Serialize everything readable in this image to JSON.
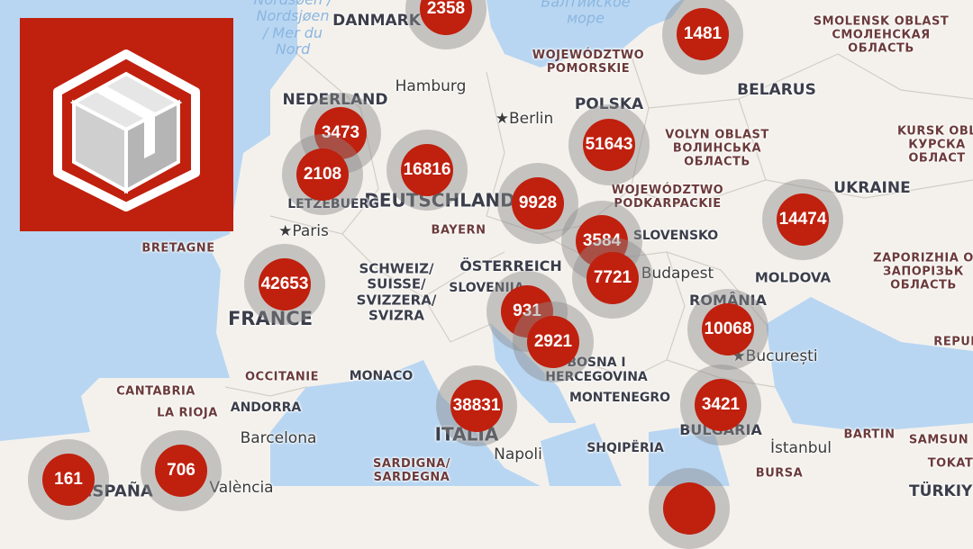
{
  "colors": {
    "land": "#f4f1ec",
    "sea": "#b8d6f2",
    "cluster": "#c0200e",
    "halo": "#8c8c8c",
    "logo_bg": "#c0200e"
  },
  "logo": {
    "icon": "package-box-icon"
  },
  "labels": {
    "north_sea": "Nordsøen /\nNordsjøen\n/ Mer du\nNord",
    "baltic": "Балтийское\nморе",
    "denmark": "DANMARK",
    "smolensk": "SMOLENSK OBLAST\nСМОЛЕНСКАЯ\nОБЛАСТЬ",
    "pomorskie": "WOJEWÓDZTWO\nPOMORSKIE",
    "hamburg": "Hamburg",
    "belarus": "BELARUS",
    "berlin": "Berlin",
    "nederland": "NEDERLAND",
    "polska": "POLSKA",
    "volyn": "VOLYN OBLAST\nВОЛИНСЬКА\nОБЛАСТЬ",
    "kursk": "KURSK OBL\nКУРСКА\nОБЛАСТ",
    "deutschland": "DEUTSCHLAND",
    "letzebuerg": "LETZEBUERG",
    "podkarpackie": "WOJEWÓDZTWO\nPODKARPACKIE",
    "ukraine": "UKRAINE",
    "bretagne": "BRETAGNE",
    "paris": "Paris",
    "bayern": "BAYERN",
    "slovensko": "SLOVENSKO",
    "zaporizhia": "ZAPORIZHIA O\nЗАПОРІЗЬК\nОБЛАСТЬ",
    "schweiz": "SCHWEIZ/\nSUISSE/\nSVIZZERA/\nSVIZRA",
    "osterreich": "ÖSTERREICH",
    "budapest": "Budapest",
    "moldova": "MOLDOVA",
    "france": "FRANCE",
    "slovenija": "SLOVENIJA",
    "romania": "ROMÂNIA",
    "repub": "REPUB",
    "bosna": "BOSNA I\nHERCEGOVINA",
    "bucuresti": "București",
    "occitanie": "OCCITANIE",
    "monaco": "MONACO",
    "cantabria": "CANTABRIA",
    "la_rioja": "LA RIOJA",
    "andorra": "ANDORRA",
    "italia": "ITALIA",
    "montenegro": "MONTENEGRO",
    "bulgaria": "BULGARIA",
    "barcelona": "Barcelona",
    "napoli": "Napoli",
    "shqiperia": "SHQIPËRIA",
    "istanbul": "İstanbul",
    "bartin": "BARTIN",
    "samsun": "SAMSUN",
    "sardigna": "SARDIGNA/\nSARDEGNA",
    "bursa": "BURSA",
    "tokat": "TOKAT",
    "espana": "ESPAÑA",
    "valencia": "València",
    "turkiye": "TÜRKIYE"
  },
  "clusters": [
    {
      "count": "2358"
    },
    {
      "count": "1481"
    },
    {
      "count": "3473"
    },
    {
      "count": "2108"
    },
    {
      "count": "16816"
    },
    {
      "count": "51643"
    },
    {
      "count": "9928"
    },
    {
      "count": "14474"
    },
    {
      "count": "3584"
    },
    {
      "count": "7721"
    },
    {
      "count": "42653"
    },
    {
      "count": "931"
    },
    {
      "count": "2921"
    },
    {
      "count": "10068"
    },
    {
      "count": "38831"
    },
    {
      "count": "3421"
    },
    {
      "count": "161"
    },
    {
      "count": "706"
    },
    {
      "count": ""
    }
  ]
}
